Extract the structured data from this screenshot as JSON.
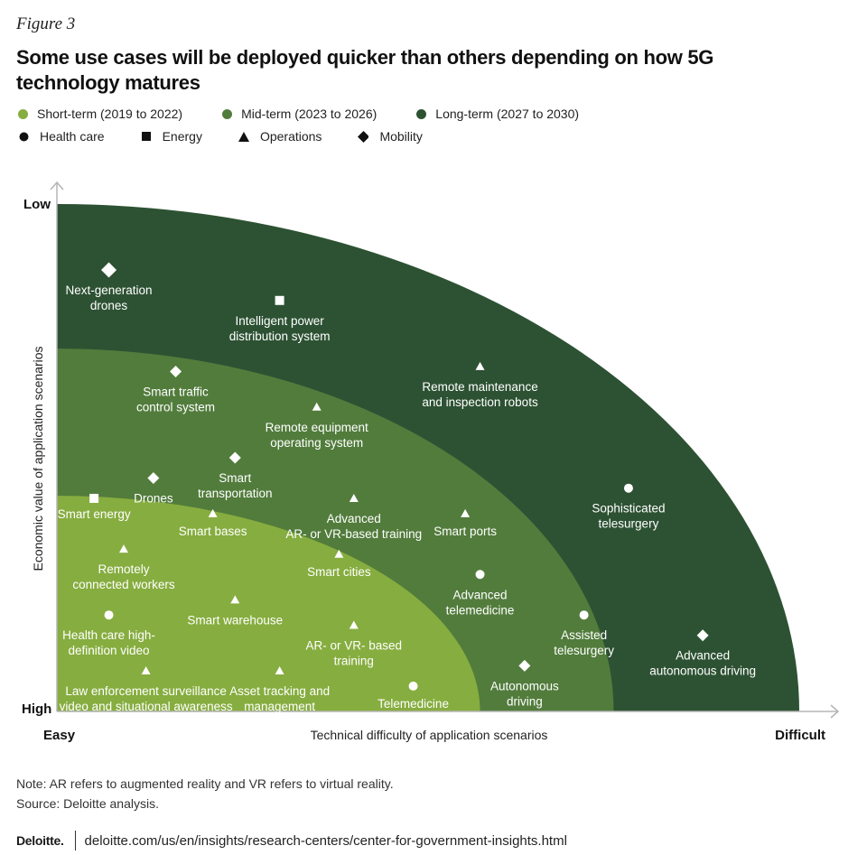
{
  "figure_label": "Figure 3",
  "title": "Some use cases will be deployed quicker than others depending on how 5G technology matures",
  "colors": {
    "short_term": "#86ad3f",
    "mid_term": "#527c3c",
    "long_term": "#2d5233",
    "axis": "#b5b5b5"
  },
  "legend": {
    "terms": [
      {
        "label": "Short-term (2019 to 2022)",
        "color": "#86ad3f"
      },
      {
        "label": "Mid-term (2023 to 2026)",
        "color": "#527c3c"
      },
      {
        "label": "Long-term (2027 to 2030)",
        "color": "#2d5233"
      }
    ],
    "sectors": [
      {
        "label": "Health care",
        "icon": "circle-icon"
      },
      {
        "label": "Energy",
        "icon": "square-icon"
      },
      {
        "label": "Operations",
        "icon": "triangle-icon"
      },
      {
        "label": "Mobility",
        "icon": "diamond-icon"
      }
    ]
  },
  "chart_data": {
    "type": "scatter",
    "xlabel": "Technical difficulty of application scenarios",
    "ylabel": "Economic value of application scenarios",
    "x_tick_labels": [
      "Easy",
      "Difficult"
    ],
    "y_tick_labels": [
      "Low",
      "High"
    ],
    "xlim": [
      0,
      100
    ],
    "ylim": [
      0,
      100
    ],
    "zones": [
      {
        "name": "Long-term (2027 to 2030)",
        "reach": 100
      },
      {
        "name": "Mid-term (2023 to 2026)",
        "reach": 75
      },
      {
        "name": "Short-term (2019 to 2022)",
        "reach": 57
      }
    ],
    "points": [
      {
        "label": "Next-generation drones",
        "sector": "Mobility",
        "x": 7,
        "y": 87
      },
      {
        "label": "Intelligent power distribution system",
        "sector": "Energy",
        "x": 30,
        "y": 81
      },
      {
        "label": "Remote maintenance and inspection robots",
        "sector": "Operations",
        "x": 57,
        "y": 68
      },
      {
        "label": "Smart traffic control system",
        "sector": "Mobility",
        "x": 16,
        "y": 67
      },
      {
        "label": "Remote equipment operating system",
        "sector": "Operations",
        "x": 35,
        "y": 60
      },
      {
        "label": "Smart transportation",
        "sector": "Mobility",
        "x": 24,
        "y": 50
      },
      {
        "label": "Drones",
        "sector": "Mobility",
        "x": 13,
        "y": 46
      },
      {
        "label": "Sophisticated telesurgery",
        "sector": "Health care",
        "x": 77,
        "y": 44
      },
      {
        "label": "Smart energy",
        "sector": "Energy",
        "x": 5,
        "y": 42
      },
      {
        "label": "Advanced AR- or VR-based training",
        "sector": "Operations",
        "x": 40,
        "y": 42
      },
      {
        "label": "Smart bases",
        "sector": "Operations",
        "x": 21,
        "y": 39
      },
      {
        "label": "Smart ports",
        "sector": "Operations",
        "x": 55,
        "y": 39
      },
      {
        "label": "Remotely connected workers",
        "sector": "Operations",
        "x": 9,
        "y": 32
      },
      {
        "label": "Smart cities",
        "sector": "Operations",
        "x": 38,
        "y": 31
      },
      {
        "label": "Advanced telemedicine",
        "sector": "Health care",
        "x": 57,
        "y": 27
      },
      {
        "label": "Smart warehouse",
        "sector": "Operations",
        "x": 24,
        "y": 22
      },
      {
        "label": "Health care high-definition video",
        "sector": "Health care",
        "x": 7,
        "y": 19
      },
      {
        "label": "Assisted telesurgery",
        "sector": "Health care",
        "x": 71,
        "y": 19
      },
      {
        "label": "AR- or VR- based training",
        "sector": "Operations",
        "x": 40,
        "y": 17
      },
      {
        "label": "Advanced autonomous driving",
        "sector": "Mobility",
        "x": 87,
        "y": 15
      },
      {
        "label": "Law enforcement surveillance video and situational awareness",
        "sector": "Operations",
        "x": 12,
        "y": 8
      },
      {
        "label": "Asset tracking and management",
        "sector": "Operations",
        "x": 30,
        "y": 8
      },
      {
        "label": "Autonomous driving",
        "sector": "Mobility",
        "x": 63,
        "y": 9
      },
      {
        "label": "Telemedicine",
        "sector": "Health care",
        "x": 48,
        "y": 5
      }
    ]
  },
  "notes": {
    "note": "Note: AR refers to augmented reality and VR refers to virtual reality.",
    "source": "Source: Deloitte analysis."
  },
  "footer": {
    "brand": "Deloitte.",
    "url": "deloitte.com/us/en/insights/research-centers/center-for-government-insights.html"
  }
}
